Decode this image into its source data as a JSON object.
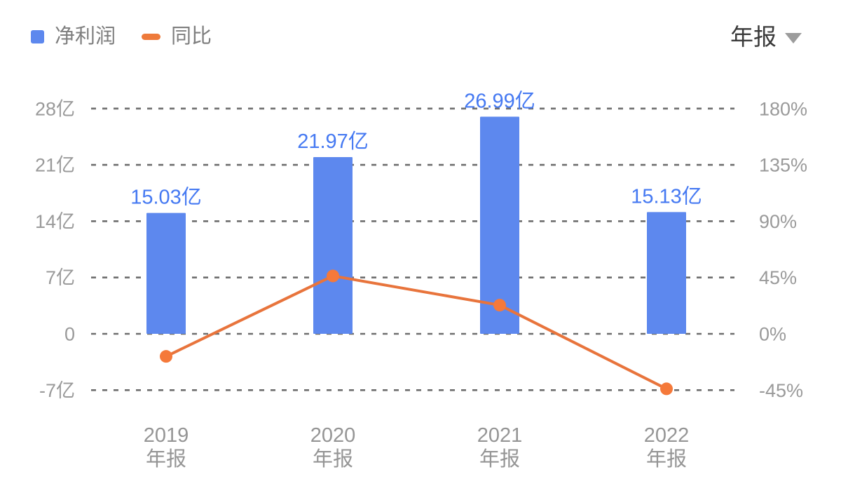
{
  "legend": {
    "items": [
      {
        "label": "净利润",
        "marker": "square",
        "color": "#5D88EE"
      },
      {
        "label": "同比",
        "marker": "dash",
        "color": "#EE7A3B"
      }
    ]
  },
  "period_selector": {
    "label": "年报",
    "icon": "caret-down-icon"
  },
  "colors": {
    "bar": "#5D88EE",
    "bar_label": "#4579F2",
    "line": "#E8743C",
    "marker": "#F5793A",
    "grid": "#6E6E6E",
    "axis_tick": "#9A9A9A",
    "x_label": "#959595",
    "legend_text": "#7E7E7E",
    "header_text": "#3A3A3A",
    "caret": "#9C9C9C"
  },
  "chart_data": {
    "type": "bar",
    "subtype": "bar+line dual-axis",
    "categories": [
      "2019 年报",
      "2020 年报",
      "2021 年报",
      "2022 年报"
    ],
    "x_labels": [
      {
        "line1": "2019",
        "line2": "年报"
      },
      {
        "line1": "2020",
        "line2": "年报"
      },
      {
        "line1": "2021",
        "line2": "年报"
      },
      {
        "line1": "2022",
        "line2": "年报"
      }
    ],
    "series": [
      {
        "name": "净利润",
        "type": "bar",
        "axis": "left",
        "unit": "亿",
        "values": [
          15.03,
          21.97,
          26.99,
          15.13
        ],
        "labels": [
          "15.03亿",
          "21.97亿",
          "26.99亿",
          "15.13亿"
        ]
      },
      {
        "name": "同比",
        "type": "line",
        "axis": "right",
        "unit": "%",
        "values": [
          -18,
          46.2,
          22.9,
          -43.9
        ]
      }
    ],
    "left_axis": {
      "tick_labels": [
        "28亿",
        "21亿",
        "14亿",
        "7亿",
        "0",
        "-7亿"
      ],
      "tick_values": [
        28,
        21,
        14,
        7,
        0,
        -7
      ],
      "range": [
        -10.5,
        31.5
      ]
    },
    "right_axis": {
      "tick_labels": [
        "180%",
        "135%",
        "90%",
        "45%",
        "0%",
        "-45%"
      ],
      "tick_values": [
        180,
        135,
        90,
        45,
        0,
        -45
      ],
      "range": [
        -67.5,
        202.5
      ]
    },
    "grid": "horizontal dashed",
    "legend_position": "top-left",
    "title": ""
  }
}
